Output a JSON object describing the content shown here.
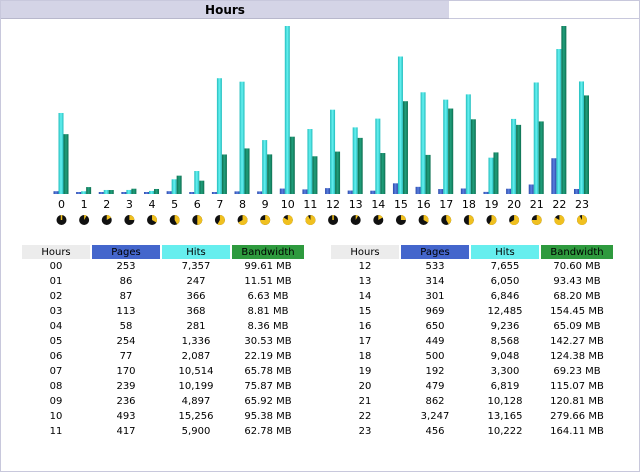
{
  "title": "Hours",
  "headers": {
    "hours": "Hours",
    "pages": "Pages",
    "hits": "Hits",
    "bandwidth": "Bandwidth"
  },
  "colors": {
    "pages": "#4466cc",
    "hits": "#33dddd",
    "bandwidth": "#158a6a",
    "hits_header": "#66eeee",
    "bandwidth_header": "#2e9a3e"
  },
  "chart_data": {
    "type": "bar",
    "categories": [
      "0",
      "1",
      "2",
      "3",
      "4",
      "5",
      "6",
      "7",
      "8",
      "9",
      "10",
      "11",
      "12",
      "13",
      "14",
      "15",
      "16",
      "17",
      "18",
      "19",
      "20",
      "21",
      "22",
      "23"
    ],
    "series": [
      {
        "name": "Pages",
        "values": [
          253,
          86,
          87,
          113,
          58,
          254,
          77,
          170,
          239,
          236,
          493,
          417,
          533,
          314,
          301,
          969,
          650,
          449,
          500,
          192,
          479,
          862,
          3247,
          456
        ]
      },
      {
        "name": "Hits",
        "values": [
          7357,
          247,
          366,
          368,
          281,
          1336,
          2087,
          10514,
          10199,
          4897,
          15256,
          5900,
          7655,
          6050,
          6846,
          12485,
          9236,
          8568,
          9048,
          3300,
          6819,
          10128,
          13165,
          10222
        ]
      },
      {
        "name": "Bandwidth",
        "values": [
          99.61,
          11.51,
          6.63,
          8.81,
          8.36,
          30.53,
          22.19,
          65.78,
          75.87,
          65.92,
          95.38,
          62.78,
          70.6,
          93.43,
          68.2,
          154.45,
          65.09,
          142.27,
          124.38,
          69.23,
          115.07,
          120.81,
          279.66,
          164.11
        ]
      }
    ]
  },
  "rows_left": [
    {
      "hour": "00",
      "pages": "253",
      "hits": "7,357",
      "bandwidth": "99.61 MB"
    },
    {
      "hour": "01",
      "pages": "86",
      "hits": "247",
      "bandwidth": "11.51 MB"
    },
    {
      "hour": "02",
      "pages": "87",
      "hits": "366",
      "bandwidth": "6.63 MB"
    },
    {
      "hour": "03",
      "pages": "113",
      "hits": "368",
      "bandwidth": "8.81 MB"
    },
    {
      "hour": "04",
      "pages": "58",
      "hits": "281",
      "bandwidth": "8.36 MB"
    },
    {
      "hour": "05",
      "pages": "254",
      "hits": "1,336",
      "bandwidth": "30.53 MB"
    },
    {
      "hour": "06",
      "pages": "77",
      "hits": "2,087",
      "bandwidth": "22.19 MB"
    },
    {
      "hour": "07",
      "pages": "170",
      "hits": "10,514",
      "bandwidth": "65.78 MB"
    },
    {
      "hour": "08",
      "pages": "239",
      "hits": "10,199",
      "bandwidth": "75.87 MB"
    },
    {
      "hour": "09",
      "pages": "236",
      "hits": "4,897",
      "bandwidth": "65.92 MB"
    },
    {
      "hour": "10",
      "pages": "493",
      "hits": "15,256",
      "bandwidth": "95.38 MB"
    },
    {
      "hour": "11",
      "pages": "417",
      "hits": "5,900",
      "bandwidth": "62.78 MB"
    }
  ],
  "rows_right": [
    {
      "hour": "12",
      "pages": "533",
      "hits": "7,655",
      "bandwidth": "70.60 MB"
    },
    {
      "hour": "13",
      "pages": "314",
      "hits": "6,050",
      "bandwidth": "93.43 MB"
    },
    {
      "hour": "14",
      "pages": "301",
      "hits": "6,846",
      "bandwidth": "68.20 MB"
    },
    {
      "hour": "15",
      "pages": "969",
      "hits": "12,485",
      "bandwidth": "154.45 MB"
    },
    {
      "hour": "16",
      "pages": "650",
      "hits": "9,236",
      "bandwidth": "65.09 MB"
    },
    {
      "hour": "17",
      "pages": "449",
      "hits": "8,568",
      "bandwidth": "142.27 MB"
    },
    {
      "hour": "18",
      "pages": "500",
      "hits": "9,048",
      "bandwidth": "124.38 MB"
    },
    {
      "hour": "19",
      "pages": "192",
      "hits": "3,300",
      "bandwidth": "69.23 MB"
    },
    {
      "hour": "20",
      "pages": "479",
      "hits": "6,819",
      "bandwidth": "115.07 MB"
    },
    {
      "hour": "21",
      "pages": "862",
      "hits": "10,128",
      "bandwidth": "120.81 MB"
    },
    {
      "hour": "22",
      "pages": "3,247",
      "hits": "13,165",
      "bandwidth": "279.66 MB"
    },
    {
      "hour": "23",
      "pages": "456",
      "hits": "10,222",
      "bandwidth": "164.11 MB"
    }
  ]
}
